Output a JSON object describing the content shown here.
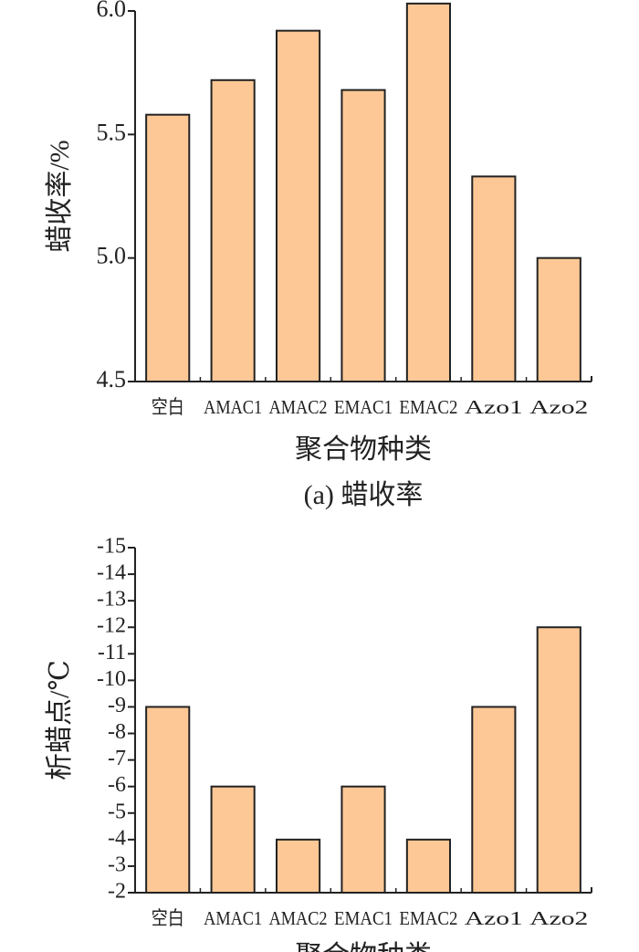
{
  "chart_data": [
    {
      "type": "bar",
      "y_label": "蜡收率/%",
      "x_label": "聚合物种类",
      "caption": "(a) 蜡收率",
      "categories": [
        "空白",
        "AMAC1",
        "AMAC2",
        "EMAC1",
        "EMAC2",
        "Azo1",
        "Azo2"
      ],
      "values": [
        5.58,
        5.72,
        5.92,
        5.68,
        6.03,
        5.33,
        5.0
      ],
      "color": "#fdc896",
      "ylim": [
        4.5,
        6.0
      ],
      "yticks": [
        4.5,
        {
          "value": 5.0,
          "label": "5.0"
        },
        5.5,
        {
          "value": 6.0,
          "label": "6.0"
        }
      ]
    },
    {
      "type": "bar",
      "y_label": "析蜡点/℃",
      "x_label": "聚合物种类",
      "categories": [
        "空白",
        "AMAC1",
        "AMAC2",
        "EMAC1",
        "EMAC2",
        "Azo1",
        "Azo2"
      ],
      "values": [
        -9,
        -6,
        -4,
        -6,
        -4,
        -9,
        -12
      ],
      "color": "#fdc896",
      "ylim": [
        -2,
        -15
      ],
      "yticks": [
        -2,
        -3,
        -4,
        -5,
        -6,
        -7,
        -8,
        -9,
        -10,
        -11,
        -12,
        -13,
        -14,
        -15
      ]
    }
  ]
}
